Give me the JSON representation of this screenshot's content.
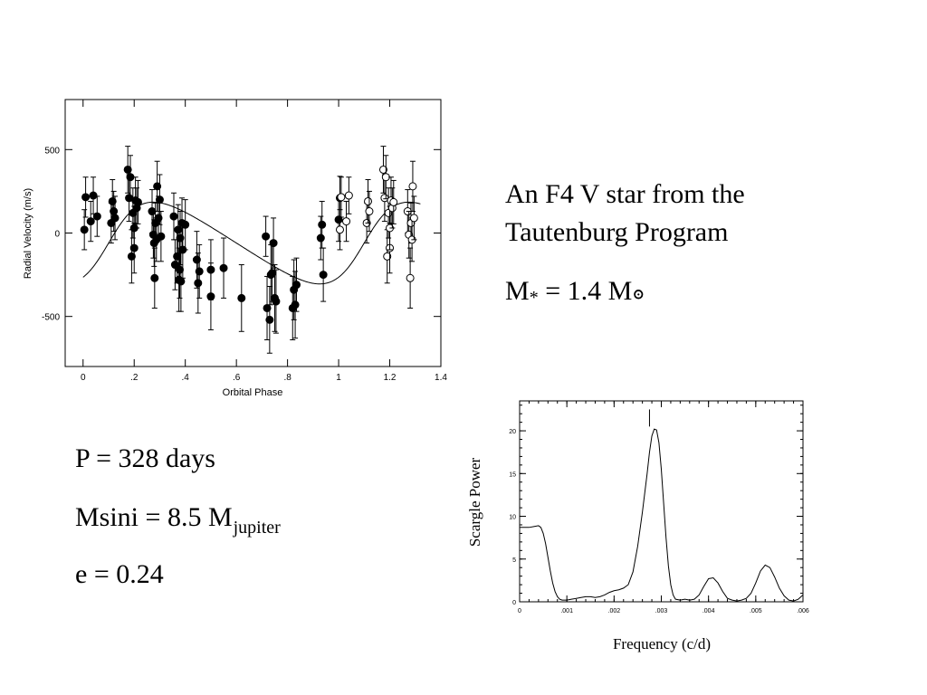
{
  "chart_data": [
    {
      "type": "scatter",
      "title": "",
      "xlabel": "Orbital Phase",
      "ylabel": "Radial Velocity (m/s)",
      "xlim": [
        -0.07,
        1.4
      ],
      "ylim": [
        -800,
        800
      ],
      "x_ticks": [
        0,
        0.2,
        0.4,
        0.6,
        0.8,
        1.0,
        1.2,
        1.4
      ],
      "x_tick_labels": [
        "0",
        ".2",
        ".4",
        ".6",
        ".8",
        "1",
        "1.2",
        "1.4"
      ],
      "y_ticks": [
        -500,
        0,
        500
      ],
      "y_tick_labels": [
        "-500",
        "0",
        "500"
      ],
      "series": [
        {
          "marker": "filled-circle",
          "points": [
            {
              "x": 0.005,
              "y": 20,
              "err": 120
            },
            {
              "x": 0.01,
              "y": 215,
              "err": 120
            },
            {
              "x": 0.03,
              "y": 70,
              "err": 120
            },
            {
              "x": 0.04,
              "y": 225,
              "err": 110
            },
            {
              "x": 0.055,
              "y": 100,
              "err": 120
            },
            {
              "x": 0.11,
              "y": 60,
              "err": 120
            },
            {
              "x": 0.115,
              "y": 190,
              "err": 130
            },
            {
              "x": 0.12,
              "y": 130,
              "err": 120
            },
            {
              "x": 0.125,
              "y": 90,
              "err": 130
            },
            {
              "x": 0.175,
              "y": 380,
              "err": 140
            },
            {
              "x": 0.18,
              "y": 210,
              "err": 140
            },
            {
              "x": 0.185,
              "y": 335,
              "err": 130
            },
            {
              "x": 0.19,
              "y": -140,
              "err": 160
            },
            {
              "x": 0.195,
              "y": 120,
              "err": 150
            },
            {
              "x": 0.2,
              "y": -90,
              "err": 150
            },
            {
              "x": 0.2,
              "y": 30,
              "err": 130
            },
            {
              "x": 0.205,
              "y": 195,
              "err": 140
            },
            {
              "x": 0.21,
              "y": 150,
              "err": 120
            },
            {
              "x": 0.215,
              "y": 185,
              "err": 130
            },
            {
              "x": 0.27,
              "y": 130,
              "err": 130
            },
            {
              "x": 0.275,
              "y": -10,
              "err": 140
            },
            {
              "x": 0.278,
              "y": -60,
              "err": 140
            },
            {
              "x": 0.28,
              "y": -270,
              "err": 180
            },
            {
              "x": 0.283,
              "y": 60,
              "err": 120
            },
            {
              "x": 0.287,
              "y": -40,
              "err": 130
            },
            {
              "x": 0.29,
              "y": 280,
              "err": 150
            },
            {
              "x": 0.295,
              "y": 90,
              "err": 130
            },
            {
              "x": 0.3,
              "y": 200,
              "err": 150
            },
            {
              "x": 0.305,
              "y": -20,
              "err": 150
            },
            {
              "x": 0.355,
              "y": 100,
              "err": 140
            },
            {
              "x": 0.36,
              "y": -190,
              "err": 150
            },
            {
              "x": 0.368,
              "y": -140,
              "err": 160
            },
            {
              "x": 0.372,
              "y": 20,
              "err": 150
            },
            {
              "x": 0.375,
              "y": -280,
              "err": 190
            },
            {
              "x": 0.378,
              "y": -220,
              "err": 170
            },
            {
              "x": 0.38,
              "y": -30,
              "err": 160
            },
            {
              "x": 0.383,
              "y": -290,
              "err": 180
            },
            {
              "x": 0.387,
              "y": 60,
              "err": 150
            },
            {
              "x": 0.39,
              "y": -100,
              "err": 170
            },
            {
              "x": 0.4,
              "y": 50,
              "err": 150
            },
            {
              "x": 0.445,
              "y": -160,
              "err": 170
            },
            {
              "x": 0.45,
              "y": -300,
              "err": 180
            },
            {
              "x": 0.455,
              "y": -230,
              "err": 160
            },
            {
              "x": 0.5,
              "y": -380,
              "err": 200
            },
            {
              "x": 0.5,
              "y": -220,
              "err": 180
            },
            {
              "x": 0.55,
              "y": -210,
              "err": 180
            },
            {
              "x": 0.62,
              "y": -390,
              "err": 200
            },
            {
              "x": 0.715,
              "y": -20,
              "err": 120
            },
            {
              "x": 0.72,
              "y": -450,
              "err": 190
            },
            {
              "x": 0.73,
              "y": -520,
              "err": 200
            },
            {
              "x": 0.735,
              "y": -250,
              "err": 180
            },
            {
              "x": 0.74,
              "y": -240,
              "err": 170
            },
            {
              "x": 0.745,
              "y": -60,
              "err": 150
            },
            {
              "x": 0.75,
              "y": -390,
              "err": 200
            },
            {
              "x": 0.755,
              "y": -410,
              "err": 190
            },
            {
              "x": 0.82,
              "y": -450,
              "err": 190
            },
            {
              "x": 0.825,
              "y": -340,
              "err": 180
            },
            {
              "x": 0.83,
              "y": -430,
              "err": 200
            },
            {
              "x": 0.835,
              "y": -310,
              "err": 160
            },
            {
              "x": 0.93,
              "y": -30,
              "err": 130
            },
            {
              "x": 0.935,
              "y": 50,
              "err": 140
            },
            {
              "x": 0.94,
              "y": -250,
              "err": 160
            },
            {
              "x": 1.0,
              "y": 80,
              "err": 130
            },
            {
              "x": 1.005,
              "y": 210,
              "err": 130
            }
          ]
        },
        {
          "marker": "open-circle",
          "points": [
            {
              "x": 1.005,
              "y": 20,
              "err": 120
            },
            {
              "x": 1.01,
              "y": 215,
              "err": 120
            },
            {
              "x": 1.03,
              "y": 70,
              "err": 120
            },
            {
              "x": 1.04,
              "y": 225,
              "err": 110
            },
            {
              "x": 1.11,
              "y": 60,
              "err": 120
            },
            {
              "x": 1.115,
              "y": 190,
              "err": 130
            },
            {
              "x": 1.12,
              "y": 130,
              "err": 120
            },
            {
              "x": 1.175,
              "y": 380,
              "err": 140
            },
            {
              "x": 1.18,
              "y": 210,
              "err": 140
            },
            {
              "x": 1.185,
              "y": 335,
              "err": 130
            },
            {
              "x": 1.19,
              "y": -140,
              "err": 160
            },
            {
              "x": 1.195,
              "y": 120,
              "err": 150
            },
            {
              "x": 1.2,
              "y": -90,
              "err": 150
            },
            {
              "x": 1.2,
              "y": 30,
              "err": 130
            },
            {
              "x": 1.205,
              "y": 195,
              "err": 140
            },
            {
              "x": 1.21,
              "y": 150,
              "err": 120
            },
            {
              "x": 1.215,
              "y": 185,
              "err": 130
            },
            {
              "x": 1.27,
              "y": 130,
              "err": 130
            },
            {
              "x": 1.275,
              "y": -10,
              "err": 140
            },
            {
              "x": 1.28,
              "y": -270,
              "err": 180
            },
            {
              "x": 1.283,
              "y": 60,
              "err": 120
            },
            {
              "x": 1.287,
              "y": -40,
              "err": 130
            },
            {
              "x": 1.29,
              "y": 280,
              "err": 150
            },
            {
              "x": 1.295,
              "y": 90,
              "err": 130
            }
          ]
        }
      ],
      "fit_curve": {
        "period_phase": 1.0,
        "K": 245,
        "e": 0.24,
        "omega_deg": 270,
        "gamma": -60,
        "tp": 0.1,
        "x_range": [
          0,
          1.32
        ]
      }
    },
    {
      "type": "line",
      "title": "",
      "xlabel": "Frequency (c/d)",
      "ylabel": "Scargle Power",
      "xlim": [
        0,
        0.006
      ],
      "ylim": [
        0,
        23.5
      ],
      "x_ticks": [
        0,
        0.001,
        0.002,
        0.003,
        0.004,
        0.005,
        0.006
      ],
      "x_tick_labels": [
        "0",
        ".001",
        ".002",
        ".003",
        ".004",
        ".005",
        ".006"
      ],
      "y_ticks": [
        0,
        5,
        10,
        15,
        20
      ],
      "y_tick_labels": [
        "0",
        "5",
        "10",
        "15",
        "20"
      ],
      "x": [
        0,
        0.0001,
        0.0002,
        0.0003,
        0.0004,
        0.00045,
        0.0005,
        0.00055,
        0.0006,
        0.00065,
        0.0007,
        0.00075,
        0.0008,
        0.00085,
        0.0009,
        0.001,
        0.0011,
        0.0012,
        0.0013,
        0.0014,
        0.0015,
        0.0016,
        0.0017,
        0.0018,
        0.0019,
        0.002,
        0.0021,
        0.0022,
        0.0023,
        0.0024,
        0.0025,
        0.0026,
        0.0027,
        0.00275,
        0.0028,
        0.00285,
        0.0029,
        0.00295,
        0.003,
        0.00305,
        0.0031,
        0.00315,
        0.0032,
        0.00325,
        0.0033,
        0.0034,
        0.0035,
        0.0036,
        0.0037,
        0.0038,
        0.0039,
        0.004,
        0.0041,
        0.0042,
        0.0043,
        0.0044,
        0.0045,
        0.0046,
        0.0047,
        0.0048,
        0.0049,
        0.005,
        0.0051,
        0.0052,
        0.0053,
        0.0054,
        0.0055,
        0.0056,
        0.0057,
        0.0058,
        0.0059,
        0.006
      ],
      "y": [
        8.7,
        8.7,
        8.7,
        8.8,
        8.9,
        8.7,
        8.0,
        6.8,
        5.2,
        3.6,
        2.2,
        1.2,
        0.6,
        0.3,
        0.2,
        0.2,
        0.3,
        0.4,
        0.5,
        0.6,
        0.6,
        0.5,
        0.6,
        0.8,
        1.1,
        1.3,
        1.4,
        1.6,
        2.0,
        3.5,
        6.5,
        10.5,
        15.0,
        17.5,
        19.4,
        20.2,
        20.1,
        18.6,
        15.5,
        11.5,
        7.5,
        4.2,
        2.0,
        0.8,
        0.3,
        0.2,
        0.3,
        0.2,
        0.3,
        0.8,
        1.8,
        2.7,
        2.8,
        2.2,
        1.2,
        0.4,
        0.2,
        0.1,
        0.2,
        0.4,
        1.0,
        2.2,
        3.6,
        4.3,
        4.0,
        2.9,
        1.6,
        0.7,
        0.2,
        0.1,
        0.3,
        0.8
      ],
      "marker_line_x": 0.00275
    }
  ],
  "text": {
    "star_title_line1": "An F4 V star from the",
    "star_title_line2": "Tautenburg Program",
    "mass_star_label": "M",
    "mass_star_sub": "*",
    "mass_star_value": " = 1.4 M",
    "mass_sun_symbol": "ʘ",
    "period": "P = 328 days",
    "msini_label": "Msini = 8.5 M",
    "msini_sub": "jupiter",
    "eccentricity": "e = 0.24"
  }
}
